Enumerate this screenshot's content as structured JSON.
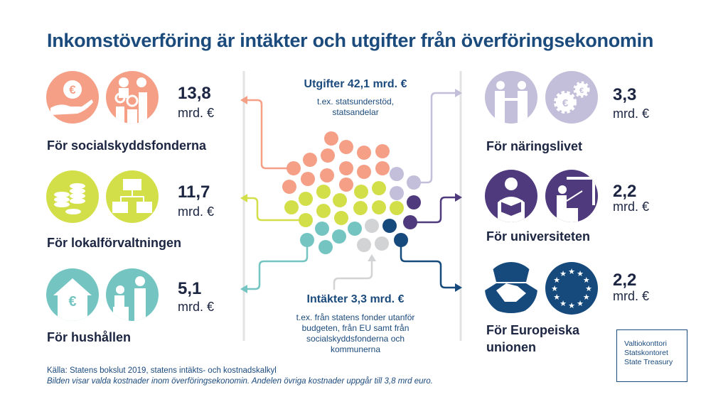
{
  "title": "Inkomstöverföring är intäkter och utgifter från överföringsekonomin",
  "colors": {
    "social": "#f49f86",
    "local": "#d3df48",
    "household": "#74c5c2",
    "business": "#c3bed9",
    "university": "#4e3a7d",
    "eu": "#174a7c",
    "income": "#d2d3d5",
    "title": "#1b4a7c"
  },
  "expenses": {
    "title": "Utgifter 42,1 mrd. €",
    "subtitle_lines": [
      "t.ex. statsunderstöd,",
      "statsandelar"
    ]
  },
  "income": {
    "title": "Intäkter 3,3 mrd. €",
    "subtitle_lines": [
      "t.ex. från statens fonder utanför",
      "budgeten, från EU samt från",
      "socialskyddsfonderna och",
      "kommunerna"
    ]
  },
  "recipients": [
    {
      "value": "13,8",
      "unit": "mrd. €",
      "label": "För socialskyddsfonderna",
      "icons": [
        "hand-euro-icon",
        "family-icon"
      ]
    },
    {
      "value": "11,7",
      "unit": "mrd. €",
      "label": "För lokalförvaltningen",
      "icons": [
        "coins-icon",
        "org-chart-icon"
      ]
    },
    {
      "value": "5,1",
      "unit": "mrd. €",
      "label": "För hushållen",
      "icons": [
        "house-euro-icon",
        "caregiver-icon"
      ]
    },
    {
      "value": "3,3",
      "unit": "mrd. €",
      "label": "För näringslivet",
      "icons": [
        "handshake-people-icon",
        "gears-euro-icon"
      ]
    },
    {
      "value": "2,2",
      "unit": "mrd. €",
      "label": "För universiteten",
      "icons": [
        "reading-student-icon",
        "teacher-icon"
      ]
    },
    {
      "value": "2,2",
      "unit": "mrd. €",
      "label_lines": [
        "För Europeiska",
        "unionen"
      ],
      "icons": [
        "handshake-icon",
        "eu-flag-icon"
      ]
    }
  ],
  "footer": {
    "source": "Källa: Statens bokslut 2019, statens intäkts- och kostnadskalkyl",
    "note": "Bilden visar valda kostnader inom överföringsekonomin. Andelen övriga kostnader uppgår till 3,8 mrd euro."
  },
  "logo": [
    "Valtiokonttori",
    "Statskontoret",
    "State Treasury"
  ]
}
